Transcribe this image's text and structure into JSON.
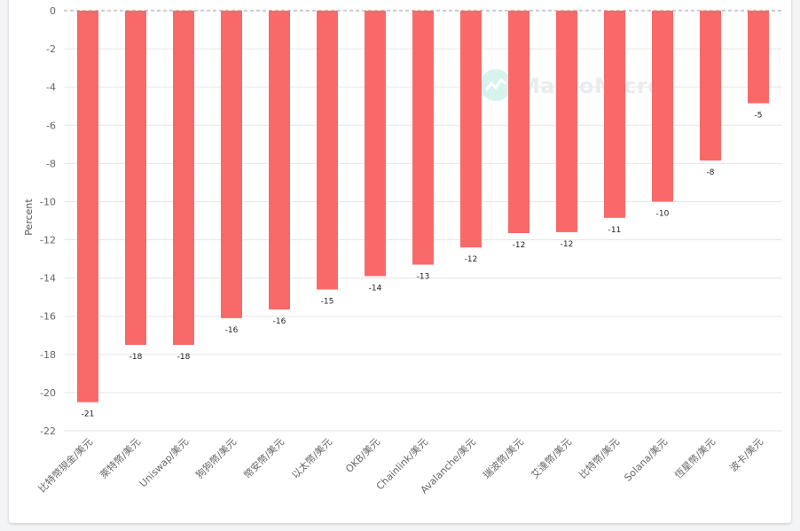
{
  "chart_data": {
    "type": "bar",
    "ylabel": "Percent",
    "ylim": [
      -22,
      0
    ],
    "yticks": [
      0,
      -2,
      -4,
      -6,
      -8,
      -10,
      -12,
      -14,
      -16,
      -18,
      -20,
      -22
    ],
    "categories": [
      "比特幣現金/美元",
      "萊特幣/美元",
      "Uniswap/美元",
      "狗狗幣/美元",
      "幣安幣/美元",
      "以太幣/美元",
      "OKB/美元",
      "Chainlink/美元",
      "Avalanche/美元",
      "瑞波幣/美元",
      "艾達幣/美元",
      "比特幣/美元",
      "Solana/美元",
      "恆星幣/美元",
      "波卡/美元"
    ],
    "values": [
      -20.5,
      -17.5,
      -17.5,
      -16.1,
      -15.65,
      -14.6,
      -13.9,
      -13.3,
      -12.4,
      -11.65,
      -11.6,
      -10.85,
      -10.0,
      -7.85,
      -4.85
    ],
    "data_labels": [
      "-21",
      "-18",
      "-18",
      "-16",
      "-16",
      "-15",
      "-14",
      "-13",
      "-12",
      "-12",
      "-12",
      "-11",
      "-10",
      "-8",
      "-5"
    ],
    "bar_color": "#fa6969",
    "grid": true
  },
  "watermark": {
    "text": "MacroMicro",
    "icon": "chart-line-icon"
  }
}
